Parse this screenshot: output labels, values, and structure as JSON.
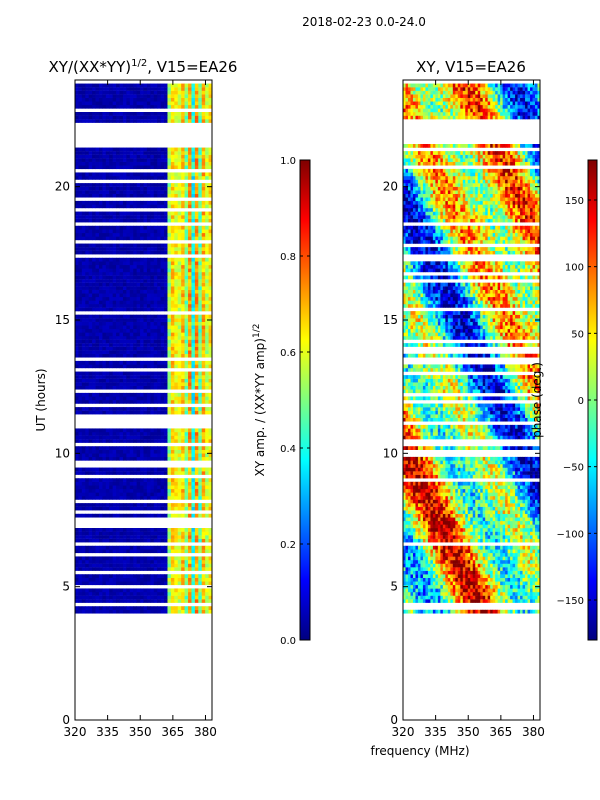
{
  "suptitle": "2018-02-23 0.0-24.0",
  "colors": {
    "jet": [
      "#00007f",
      "#0000ff",
      "#007fff",
      "#00ffff",
      "#7fff7f",
      "#ffff00",
      "#ff7f00",
      "#ff0000",
      "#7f0000"
    ],
    "frame": "#000000",
    "gap": "#ffffff"
  },
  "chart_data": [
    {
      "type": "heatmap",
      "title_main": "XY/(XX*YY)",
      "title_sup": "1/2",
      "title_tail": ", V15=EA26",
      "xlabel": "",
      "ylabel": "UT (hours)",
      "xlim": [
        320,
        383
      ],
      "ylim": [
        0,
        24
      ],
      "xticks": [
        320,
        335,
        350,
        365,
        380
      ],
      "yticks": [
        0,
        5,
        10,
        15,
        20
      ],
      "data_ut_range": [
        4,
        24
      ],
      "gap_hours": [
        [
          21.7,
          22.3
        ]
      ],
      "colorbar": {
        "label_main": "XY amp. / (XX*YY amp)",
        "label_sup": "1/2",
        "range": [
          0.0,
          1.0
        ],
        "ticks": [
          "0.0",
          "0.2",
          "0.4",
          "0.6",
          "0.8",
          "1.0"
        ]
      }
    },
    {
      "type": "heatmap",
      "title_main": "XY, V15=EA26",
      "xlabel": "frequency (MHz)",
      "ylabel": "",
      "xlim": [
        320,
        383
      ],
      "ylim": [
        0,
        24
      ],
      "xticks": [
        320,
        335,
        350,
        365,
        380
      ],
      "yticks": [
        0,
        5,
        10,
        15,
        20
      ],
      "data_ut_range": [
        4,
        24
      ],
      "gap_hours": [
        [
          21.7,
          22.3
        ]
      ],
      "colorbar": {
        "label": "phase (deg.)",
        "range": [
          -180,
          180
        ],
        "ticks": [
          "-150",
          "-100",
          "-50",
          "0",
          "50",
          "100",
          "150"
        ]
      }
    }
  ]
}
